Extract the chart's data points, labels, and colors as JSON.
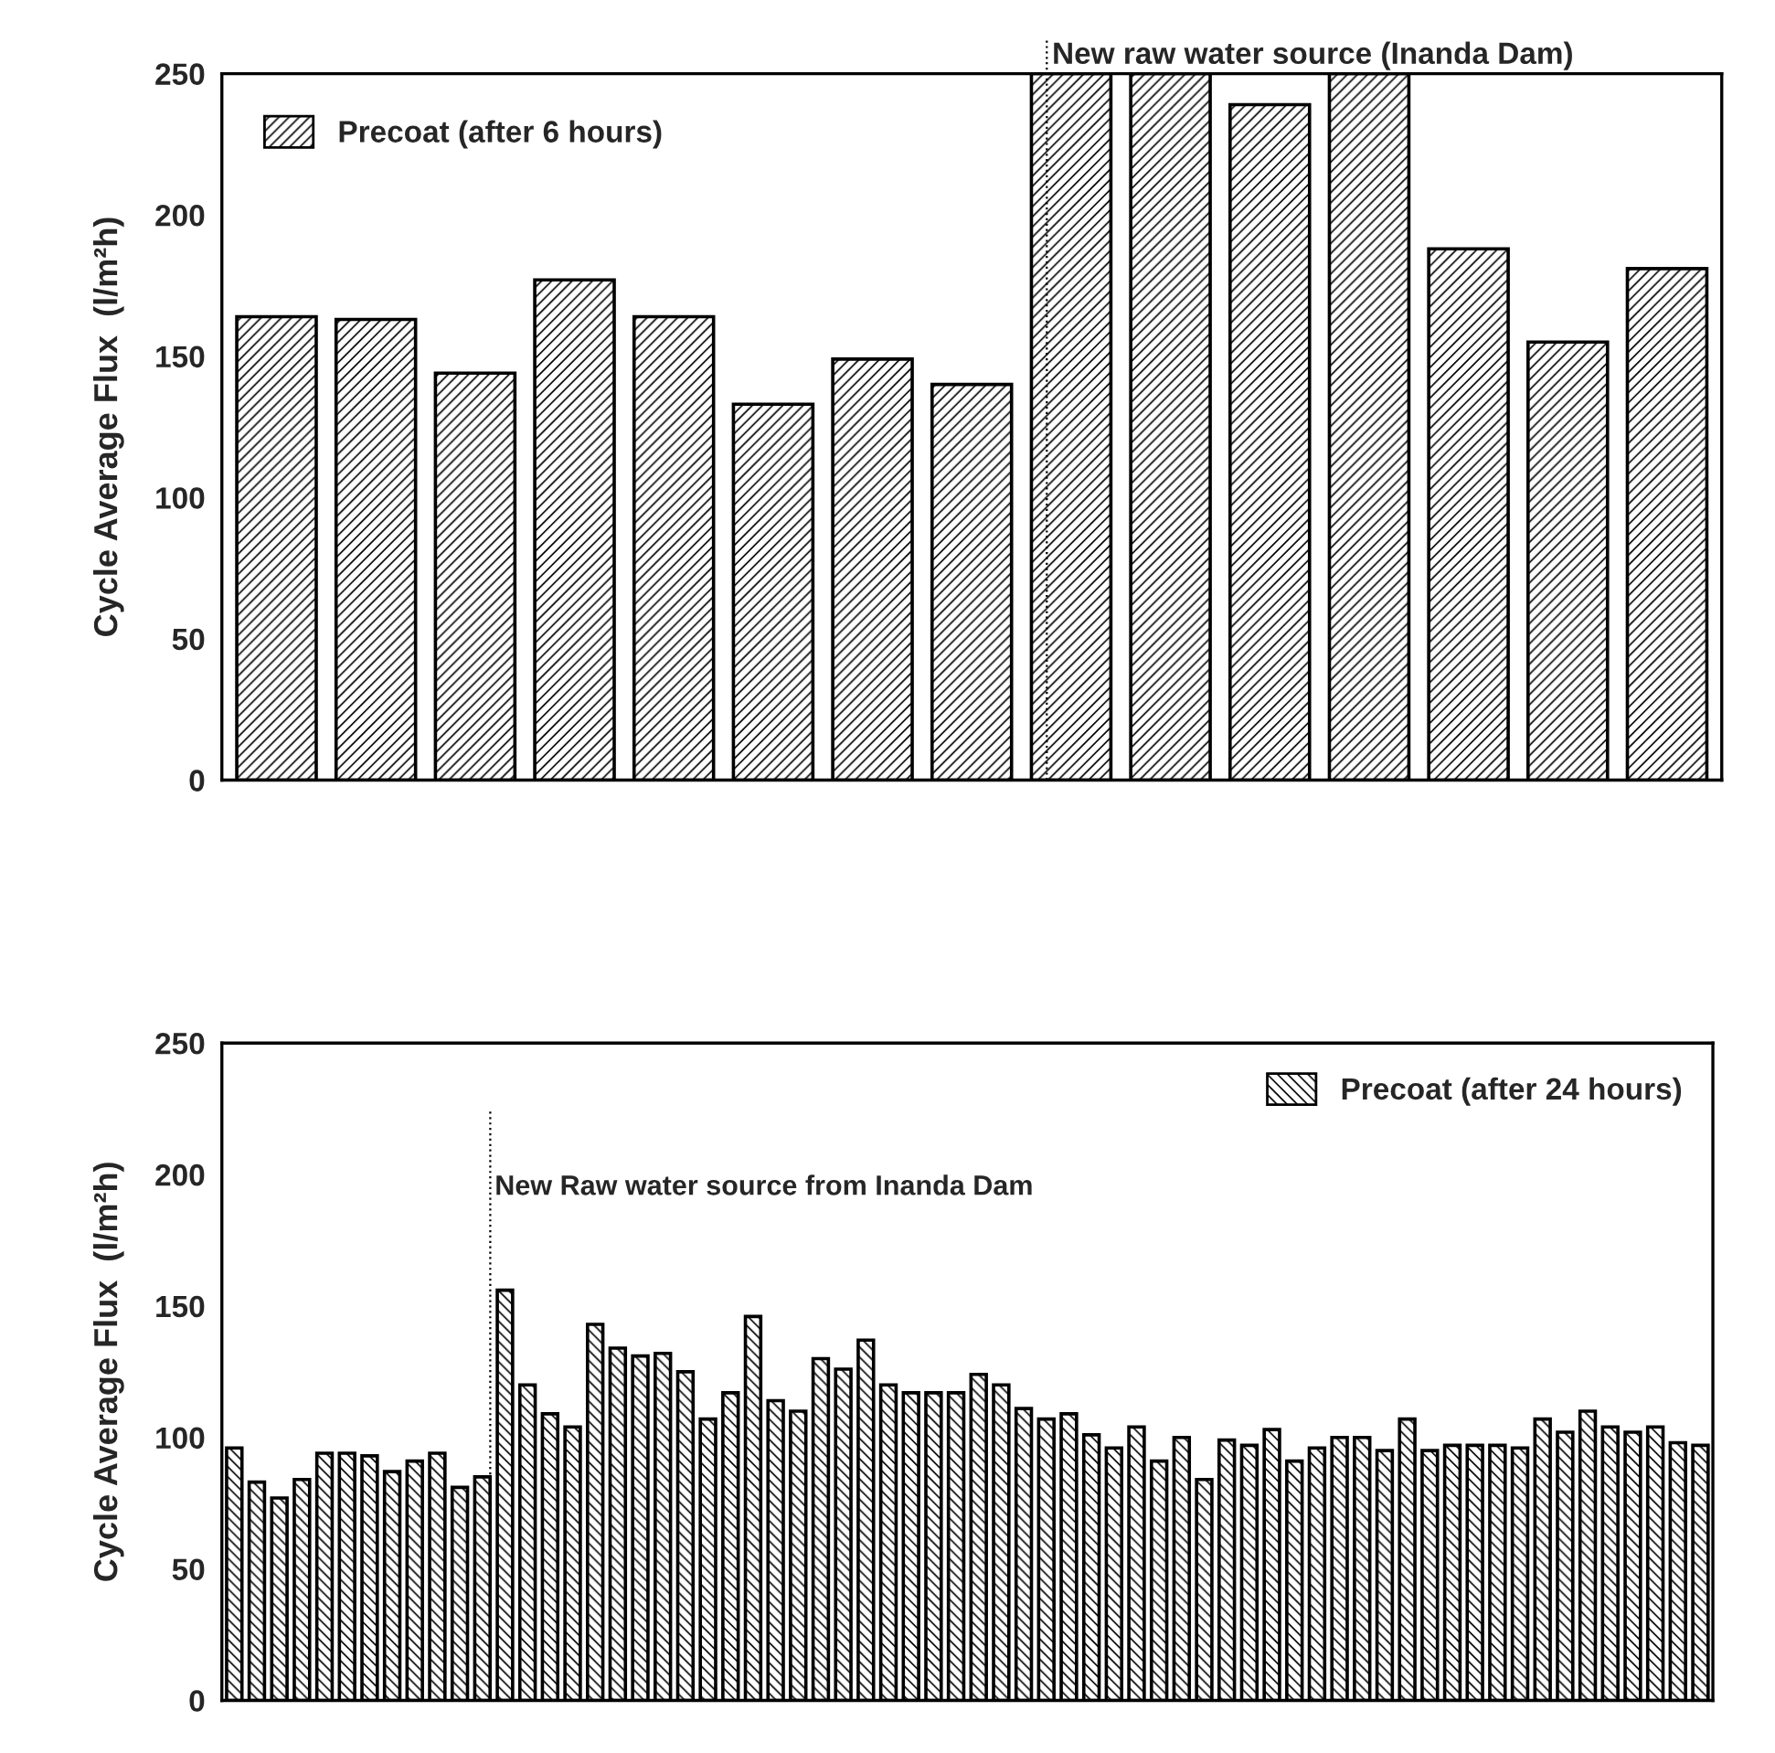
{
  "chart_data": [
    {
      "type": "bar",
      "categories": [
        null,
        null,
        null,
        null,
        null,
        null,
        null,
        null,
        null,
        null,
        null,
        null,
        null,
        null,
        null
      ],
      "series": [
        {
          "name": "Precoat (after 6 hours)",
          "color": "#000000",
          "values": [
            164,
            163,
            144,
            177,
            164,
            133,
            149,
            140,
            250,
            250,
            239,
            250,
            188,
            155,
            181
          ]
        }
      ],
      "ylabel": "Cycle Average Flux  (l/m²h)",
      "ylim": [
        0,
        250
      ],
      "yticks": [
        0,
        50,
        100,
        150,
        200,
        250
      ],
      "grid": false,
      "legend": "top left",
      "annotations": [
        "New raw water source (Inanda Dam)"
      ]
    },
    {
      "type": "bar",
      "categories": [
        null,
        null,
        null,
        null,
        null,
        null,
        null,
        null,
        null,
        null,
        null,
        null,
        null,
        null,
        null,
        null,
        null,
        null,
        null,
        null,
        null,
        null,
        null,
        null,
        null,
        null,
        null,
        null,
        null,
        null,
        null,
        null,
        null,
        null,
        null,
        null,
        null,
        null,
        null,
        null,
        null,
        null,
        null,
        null,
        null,
        null,
        null,
        null,
        null,
        null,
        null,
        null,
        null,
        null,
        null,
        null,
        null,
        null,
        null,
        null,
        null,
        null,
        null,
        null,
        null,
        null
      ],
      "series": [
        {
          "name": "Precoat (after 24 hours)",
          "color": "#000000",
          "values": [
            96,
            83,
            77,
            84,
            94,
            94,
            93,
            87,
            91,
            94,
            81,
            85,
            156,
            120,
            109,
            104,
            143,
            134,
            131,
            132,
            125,
            107,
            117,
            146,
            114,
            110,
            130,
            126,
            137,
            120,
            117,
            117,
            117,
            124,
            120,
            111,
            107,
            109,
            101,
            96,
            104,
            91,
            100,
            84,
            99,
            97,
            103,
            91,
            96,
            100,
            100,
            95,
            107,
            95,
            97,
            97,
            97,
            96,
            107,
            102,
            110,
            104,
            102,
            104,
            98,
            97
          ]
        }
      ],
      "ylabel": "Cycle Average Flux  (l/m²h)",
      "ylim": [
        0,
        250
      ],
      "yticks": [
        0,
        50,
        100,
        150,
        200,
        250
      ],
      "grid": false,
      "legend": "top right",
      "annotations": [
        "New Raw water source from Inanda Dam"
      ]
    }
  ]
}
